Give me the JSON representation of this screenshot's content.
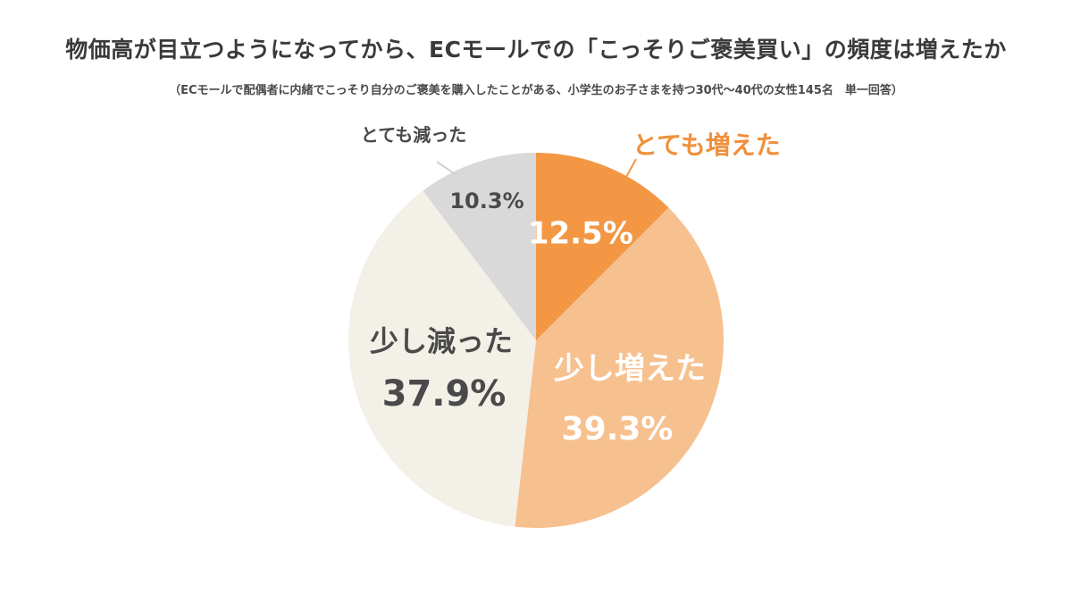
{
  "chart_data": {
    "type": "pie",
    "title": "物価高が目立つようになってから、ECモールでの「こっそりご褒美買い」の頻度は増えたか",
    "subtitle": "（ECモールで配偶者に内緒でこっそり自分のご褒美を購入したことがある、小学生のお子さまを持つ30代〜40代の女性145名　単一回答）",
    "slices": [
      {
        "label": "とても増えた",
        "value": 12.5,
        "display": "12.5%",
        "color": "#f39745"
      },
      {
        "label": "少し増えた",
        "value": 39.3,
        "display": "39.3%",
        "color": "#f7c08f"
      },
      {
        "label": "少し減った",
        "value": 37.9,
        "display": "37.9%",
        "color": "#f3f0e8"
      },
      {
        "label": "とても減った",
        "value": 10.3,
        "display": "10.3%",
        "color": "#d9d9d9"
      }
    ],
    "start_angle": "12 o'clock",
    "direction": "clockwise"
  }
}
